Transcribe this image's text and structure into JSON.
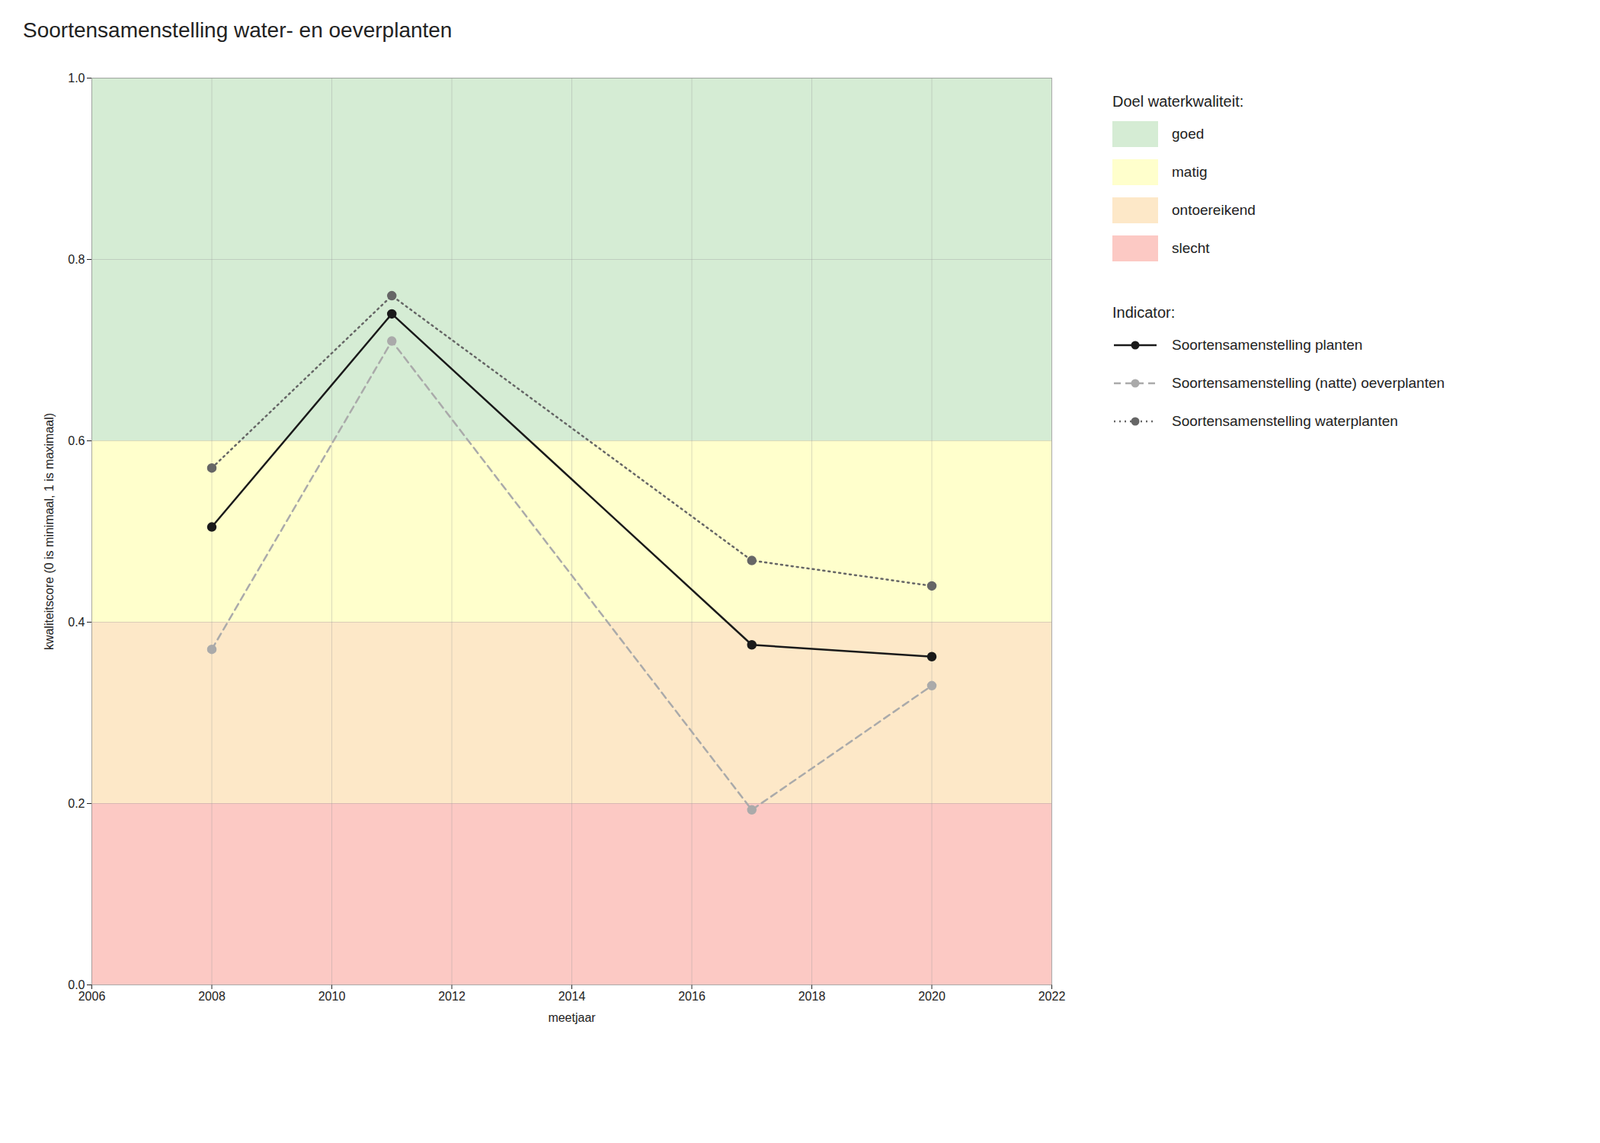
{
  "chart_data": {
    "type": "line",
    "title": "Soortensamenstelling water- en oeverplanten",
    "xlabel": "meetjaar",
    "ylabel": "kwaliteitscore (0 is minimaal, 1 is maximaal)",
    "x": [
      2008,
      2011,
      2017,
      2020
    ],
    "series": [
      {
        "name": "Soortensamenstelling planten",
        "color": "#1a1a1a",
        "line_style": "solid",
        "marker": "circle",
        "values": [
          0.505,
          0.74,
          0.375,
          0.362
        ]
      },
      {
        "name": "Soortensamenstelling (natte) oeverplanten",
        "color": "#aaaaaa",
        "line_style": "dashed",
        "marker": "circle",
        "values": [
          0.37,
          0.71,
          0.193,
          0.33
        ]
      },
      {
        "name": "Soortensamenstelling waterplanten",
        "color": "#666666",
        "line_style": "dotted",
        "marker": "circle",
        "values": [
          0.57,
          0.76,
          0.468,
          0.44
        ]
      }
    ],
    "xlim": [
      2006,
      2022
    ],
    "xticks": [
      2006,
      2008,
      2010,
      2012,
      2014,
      2016,
      2018,
      2020,
      2022
    ],
    "ylim": [
      0.0,
      1.0
    ],
    "yticks": [
      {
        "value": 0.0,
        "label": "0.0"
      },
      0.2,
      0.4,
      0.6,
      0.8,
      {
        "value": 1.0,
        "label": "1.0"
      }
    ],
    "grid": true,
    "bands": {
      "title": "Doel waterkwaliteit:",
      "items": [
        {
          "from": 0.6,
          "to": 1.0,
          "color": "#d5ecd4",
          "label": "goed"
        },
        {
          "from": 0.4,
          "to": 0.6,
          "color": "#ffffcc",
          "label": "matig"
        },
        {
          "from": 0.2,
          "to": 0.4,
          "color": "#fde8c8",
          "label": "ontoereikend"
        },
        {
          "from": 0.0,
          "to": 0.2,
          "color": "#fcc9c4",
          "label": "slecht"
        }
      ]
    },
    "legend_title": "Indicator:"
  }
}
